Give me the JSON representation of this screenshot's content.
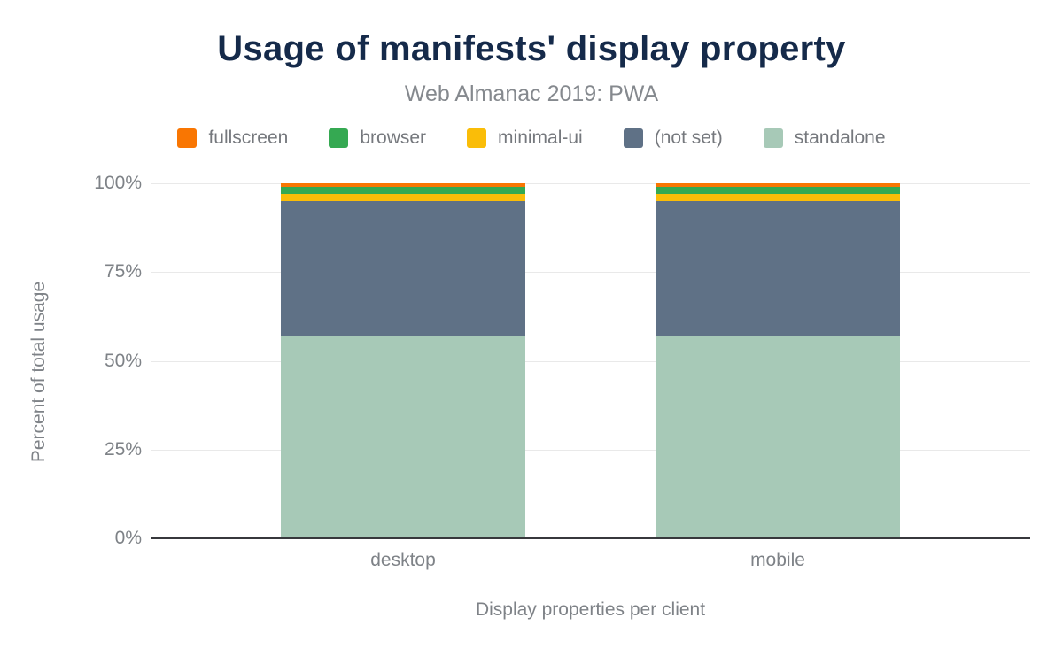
{
  "colors": {
    "background": "#ffffff",
    "title_text": "#152a4a",
    "muted_text": "#7e8287",
    "legend_text": "#75787d",
    "gridline": "#e9e9e9",
    "axis_line": "#37383c"
  },
  "chart_data": {
    "type": "bar",
    "stacked": true,
    "title": "Usage of manifests' display property",
    "subtitle": "Web Almanac 2019: PWA",
    "xlabel": "Display properties per client",
    "ylabel": "Percent of total usage",
    "categories": [
      "desktop",
      "mobile"
    ],
    "series": [
      {
        "name": "fullscreen",
        "color": "#f97602",
        "values": [
          1,
          1
        ]
      },
      {
        "name": "browser",
        "color": "#35a952",
        "values": [
          2,
          2
        ]
      },
      {
        "name": "minimal-ui",
        "color": "#fabd08",
        "values": [
          2,
          2
        ]
      },
      {
        "name": "(not set)",
        "color": "#5f7186",
        "values": [
          38,
          38
        ]
      },
      {
        "name": "standalone",
        "color": "#a7c9b7",
        "values": [
          57,
          57
        ]
      }
    ],
    "ylim": [
      0,
      100
    ],
    "yticks": [
      "0%",
      "25%",
      "50%",
      "75%",
      "100%"
    ],
    "grid": true,
    "legend_position": "top",
    "legend_order_is_top_to_bottom_of_stack": true
  }
}
